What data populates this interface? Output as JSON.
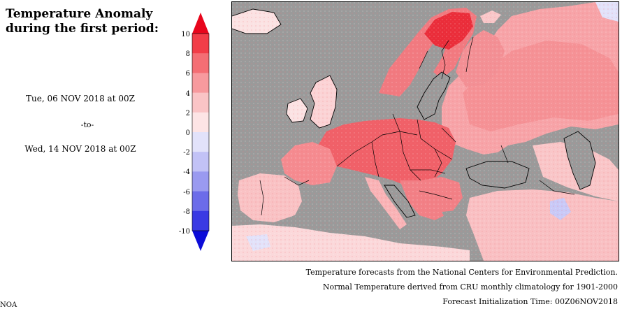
{
  "title": {
    "line1": "Temperature Anomaly",
    "line2": "during the first period:"
  },
  "period": {
    "start": "Tue, 06 NOV 2018 at 00Z",
    "separator": "-to-",
    "end": "Wed, 14 NOV 2018 at 00Z"
  },
  "colorbar": {
    "labels": [
      "10",
      "8",
      "6",
      "4",
      "2",
      "0",
      "-2",
      "-4",
      "-6",
      "-8",
      "-10"
    ],
    "colors": [
      "#e8061c",
      "#f23d48",
      "#f46e74",
      "#f79a9e",
      "#fac4c6",
      "#fde4e5",
      "#e2e2fa",
      "#c2c2f6",
      "#9a9af0",
      "#6c6ce9",
      "#3a3ae3",
      "#0c0cd8"
    ]
  },
  "map": {
    "colors": {
      "water": "#9a9a9a",
      "warm_strong": "#ef4f58",
      "warm_mid": "#f58b90",
      "warm_light": "#f9b9bc",
      "neutral": "#fde8e8",
      "cool": "#c9c9f7",
      "border": "#000000"
    }
  },
  "credits": {
    "line1": "Temperature forecasts from the National Centers for Environmental Prediction.",
    "line2": "Normal Temperature derived from CRU monthly climatology for 1901-2000",
    "line3": "Forecast Initialization Time: 00Z06NOV2018"
  },
  "corner_text": "NOA"
}
